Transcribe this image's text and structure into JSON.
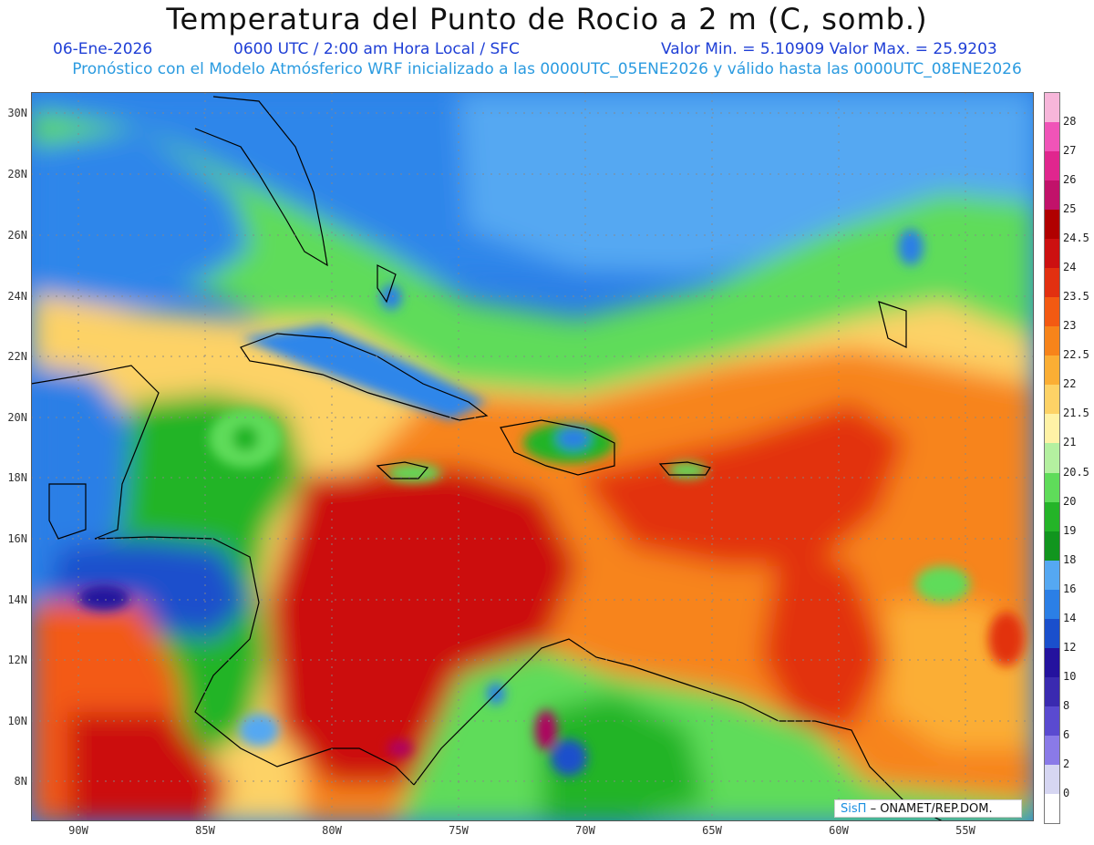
{
  "title": "Temperatura del Punto de Rocio a 2 m (C, somb.)",
  "date": "06-Ene-2026",
  "time_info": "0600 UTC / 2:00 am Hora Local / SFC",
  "stats": "Valor Min. = 5.10909   Valor Max. = 25.9203",
  "model_info": "Pronóstico con el Modelo Atmósferico WRF inicializado a las 0000UTC_05ENE2026 y válido hasta las  0000UTC_08ENE2026",
  "lat_labels": [
    "30N",
    "28N",
    "26N",
    "24N",
    "22N",
    "20N",
    "18N",
    "16N",
    "14N",
    "12N",
    "10N",
    "8N"
  ],
  "lon_labels": [
    "90W",
    "85W",
    "80W",
    "75W",
    "70W",
    "65W",
    "60W",
    "55W"
  ],
  "colorbar": {
    "levels": [
      "28",
      "27",
      "26",
      "25",
      "24.5",
      "24",
      "23.5",
      "23",
      "22.5",
      "22",
      "21.5",
      "21",
      "20.5",
      "20",
      "19",
      "18",
      "16",
      "14",
      "12",
      "10",
      "8",
      "6",
      "2",
      "0"
    ],
    "colors": [
      "#f7b6da",
      "#f054b8",
      "#e0268e",
      "#c1126a",
      "#b00000",
      "#cc1010",
      "#e23010",
      "#f35a12",
      "#f7841a",
      "#fbae34",
      "#fdd266",
      "#fff2a6",
      "#b4f0a0",
      "#5fdc5a",
      "#24b428",
      "#11951e",
      "#55a8f2",
      "#2b7fe6",
      "#1a4fcc",
      "#24129e",
      "#3a2ab0",
      "#5a4ad0",
      "#8a7ae8",
      "#d6d6f2",
      "#ffffff"
    ]
  },
  "credit": {
    "brand": "SisΠ",
    "org": "– ONAMET/REP.DOM."
  }
}
